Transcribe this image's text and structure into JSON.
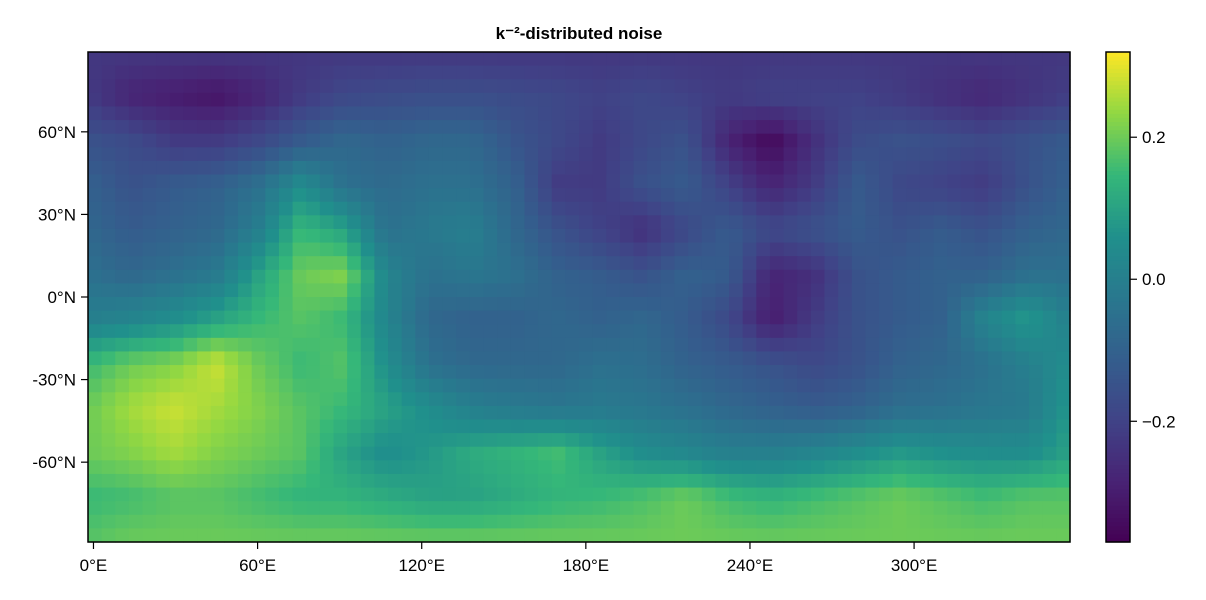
{
  "chart_data": {
    "type": "heatmap",
    "title": "k⁻²-distributed noise",
    "xlabel": "",
    "ylabel": "",
    "x_ticks": [
      {
        "value": 0,
        "label": "0°E"
      },
      {
        "value": 60,
        "label": "60°E"
      },
      {
        "value": 120,
        "label": "120°E"
      },
      {
        "value": 180,
        "label": "180°E"
      },
      {
        "value": 240,
        "label": "240°E"
      },
      {
        "value": 300,
        "label": "300°E"
      }
    ],
    "y_ticks": [
      {
        "value": 60,
        "label": "60°N"
      },
      {
        "value": 30,
        "label": "30°N"
      },
      {
        "value": 0,
        "label": "0°N"
      },
      {
        "value": -30,
        "label": "-30°N"
      },
      {
        "value": -60,
        "label": "-60°N"
      }
    ],
    "xlim": [
      -2,
      357
    ],
    "ylim": [
      -89,
      89
    ],
    "colorbar": {
      "colormap": "viridis",
      "range": [
        -0.37,
        0.32
      ],
      "ticks": [
        {
          "value": 0.2,
          "label": "0.2"
        },
        {
          "value": 0.0,
          "label": "0.0"
        },
        {
          "value": -0.2,
          "label": "−0.2"
        }
      ]
    },
    "grid_nx": 24,
    "grid_ny": 12,
    "grid_values": [
      [
        -0.23,
        -0.23,
        -0.23,
        -0.23,
        -0.23,
        -0.23,
        -0.23,
        -0.23,
        -0.23,
        -0.23,
        -0.23,
        -0.23,
        -0.23,
        -0.23,
        -0.23,
        -0.23,
        -0.23,
        -0.23,
        -0.23,
        -0.23,
        -0.23,
        -0.23,
        -0.23,
        -0.23
      ],
      [
        -0.22,
        -0.28,
        -0.3,
        -0.32,
        -0.28,
        -0.22,
        -0.18,
        -0.17,
        -0.16,
        -0.16,
        -0.17,
        -0.18,
        -0.2,
        -0.18,
        -0.2,
        -0.22,
        -0.2,
        -0.2,
        -0.2,
        -0.22,
        -0.25,
        -0.27,
        -0.24,
        -0.21
      ],
      [
        -0.15,
        -0.17,
        -0.22,
        -0.22,
        -0.18,
        -0.12,
        -0.08,
        -0.1,
        -0.08,
        -0.08,
        -0.14,
        -0.18,
        -0.22,
        -0.18,
        -0.15,
        -0.28,
        -0.35,
        -0.25,
        -0.17,
        -0.15,
        -0.16,
        -0.18,
        -0.15,
        -0.12
      ],
      [
        -0.1,
        -0.15,
        -0.12,
        -0.1,
        -0.05,
        0.05,
        -0.05,
        -0.07,
        -0.05,
        -0.05,
        -0.1,
        -0.22,
        -0.22,
        -0.15,
        -0.12,
        -0.2,
        -0.28,
        -0.22,
        -0.12,
        -0.18,
        -0.2,
        -0.22,
        -0.15,
        -0.1
      ],
      [
        -0.08,
        -0.12,
        -0.1,
        -0.08,
        0.0,
        0.15,
        0.1,
        -0.05,
        -0.02,
        0.0,
        -0.08,
        -0.15,
        -0.2,
        -0.25,
        -0.18,
        -0.12,
        -0.18,
        -0.15,
        -0.12,
        -0.15,
        -0.12,
        -0.15,
        -0.1,
        -0.08
      ],
      [
        -0.05,
        -0.08,
        -0.05,
        -0.02,
        0.1,
        0.2,
        0.22,
        0.02,
        -0.05,
        -0.03,
        -0.05,
        -0.1,
        -0.12,
        -0.15,
        -0.1,
        -0.12,
        -0.28,
        -0.25,
        -0.15,
        -0.12,
        -0.1,
        -0.1,
        -0.05,
        -0.05
      ],
      [
        0.0,
        0.02,
        0.05,
        0.1,
        0.15,
        0.18,
        0.15,
        0.02,
        -0.08,
        -0.1,
        -0.1,
        -0.08,
        -0.1,
        -0.08,
        -0.12,
        -0.18,
        -0.3,
        -0.22,
        -0.15,
        -0.12,
        -0.1,
        0.02,
        0.08,
        0.0
      ],
      [
        0.15,
        0.2,
        0.22,
        0.28,
        0.2,
        0.15,
        0.18,
        0.05,
        -0.05,
        -0.08,
        -0.08,
        -0.08,
        -0.05,
        -0.06,
        -0.1,
        -0.12,
        -0.15,
        -0.18,
        -0.15,
        -0.1,
        -0.08,
        -0.05,
        0.0,
        0.05
      ],
      [
        0.2,
        0.25,
        0.28,
        0.25,
        0.22,
        0.18,
        0.15,
        0.1,
        0.05,
        0.0,
        -0.02,
        -0.03,
        -0.02,
        -0.03,
        -0.05,
        -0.08,
        -0.1,
        -0.12,
        -0.1,
        -0.06,
        -0.05,
        -0.03,
        -0.02,
        0.08
      ],
      [
        0.2,
        0.22,
        0.25,
        0.22,
        0.2,
        0.18,
        0.1,
        0.05,
        0.08,
        0.12,
        0.14,
        0.16,
        0.1,
        0.05,
        0.03,
        0.0,
        0.0,
        0.02,
        0.05,
        0.08,
        0.06,
        0.05,
        0.05,
        0.1
      ],
      [
        0.15,
        0.16,
        0.18,
        0.18,
        0.16,
        0.14,
        0.14,
        0.12,
        0.1,
        0.1,
        0.12,
        0.14,
        0.15,
        0.17,
        0.2,
        0.16,
        0.14,
        0.16,
        0.18,
        0.2,
        0.18,
        0.16,
        0.18,
        0.18
      ],
      [
        0.18,
        0.2,
        0.2,
        0.2,
        0.2,
        0.2,
        0.2,
        0.2,
        0.2,
        0.2,
        0.2,
        0.2,
        0.2,
        0.2,
        0.2,
        0.2,
        0.2,
        0.2,
        0.2,
        0.2,
        0.2,
        0.2,
        0.2,
        0.2
      ]
    ]
  }
}
